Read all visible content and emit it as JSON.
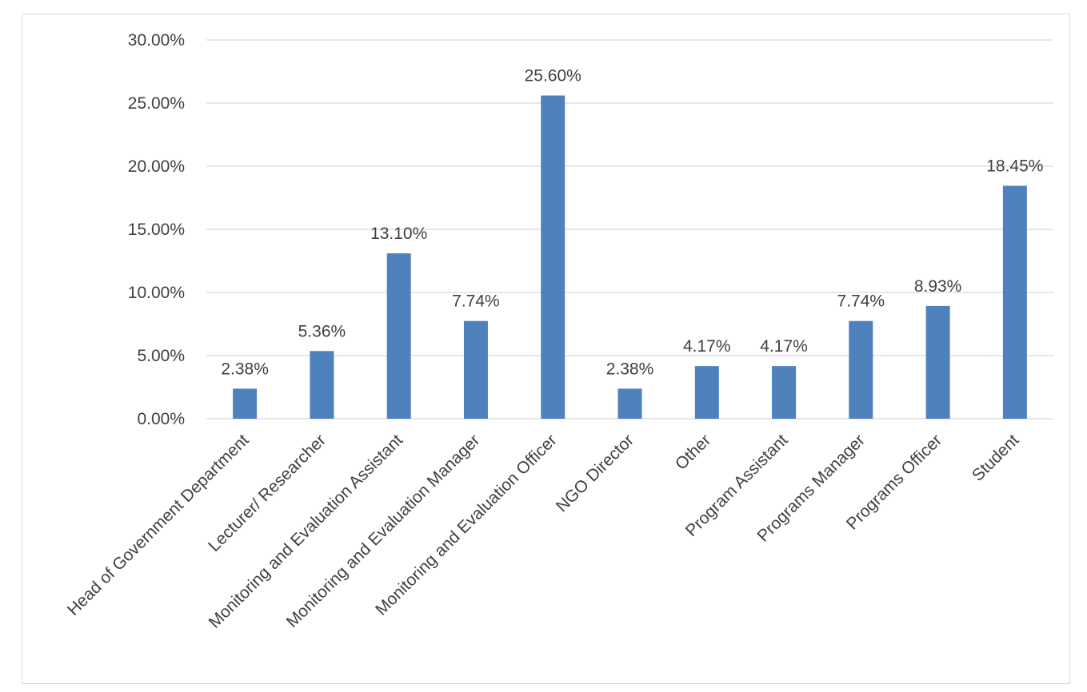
{
  "chart_data": {
    "type": "bar",
    "categories": [
      "Head of Government Department",
      "Lecturer/ Researcher",
      "Monitoring and Evaluation Assistant",
      "Monitoring and Evaluation Manager",
      "Monitoring and Evaluation Officer",
      "NGO Director",
      "Other",
      "Program Assistant",
      "Programs Manager",
      "Programs Officer",
      "Student"
    ],
    "values": [
      2.38,
      5.36,
      13.1,
      7.74,
      25.6,
      2.38,
      4.17,
      4.17,
      7.74,
      8.93,
      18.45
    ],
    "data_labels": [
      "2.38%",
      "5.36%",
      "13.10%",
      "7.74%",
      "25.60%",
      "2.38%",
      "4.17%",
      "4.17%",
      "7.74%",
      "8.93%",
      "18.45%"
    ],
    "yticks": [
      0,
      5,
      10,
      15,
      20,
      25,
      30
    ],
    "ytick_labels": [
      "0.00%",
      "5.00%",
      "10.00%",
      "15.00%",
      "20.00%",
      "25.00%",
      "30.00%"
    ],
    "ylim": [
      0,
      30
    ],
    "grid": true,
    "title": "",
    "xlabel": "",
    "ylabel": "",
    "bar_color": "#4f81bd",
    "grid_color": "#d9d9d9"
  }
}
